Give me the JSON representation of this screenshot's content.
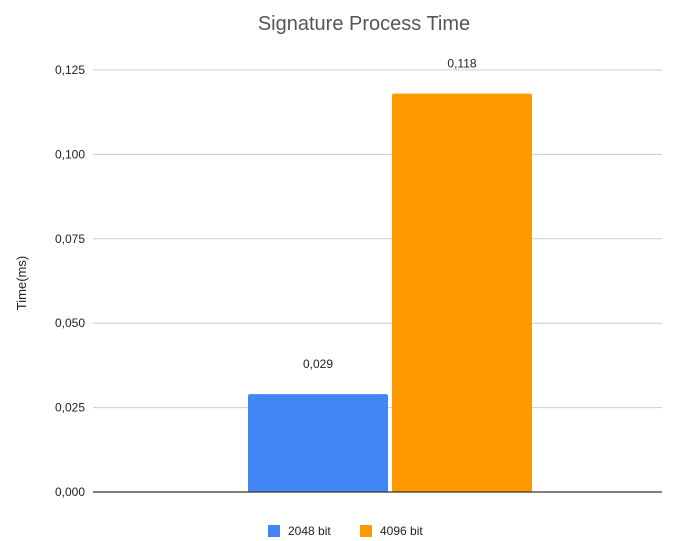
{
  "chart_data": {
    "type": "bar",
    "title": "Signature Process Time",
    "xlabel": "",
    "ylabel": "Time(ms)",
    "categories": [
      ""
    ],
    "series": [
      {
        "name": "2048 bit",
        "values": [
          0.029
        ],
        "value_labels": [
          "0,029"
        ],
        "color": "#4285f4"
      },
      {
        "name": "4096 bit",
        "values": [
          0.118
        ],
        "value_labels": [
          "0,118"
        ],
        "color": "#ff9900"
      }
    ],
    "yticks": [
      0,
      0.025,
      0.05,
      0.075,
      0.1,
      0.125
    ],
    "ytick_labels": [
      "0,000",
      "0,025",
      "0,050",
      "0,075",
      "0,100",
      "0,125"
    ],
    "ylim": [
      0,
      0.125
    ],
    "grid": true,
    "legend_position": "bottom"
  }
}
